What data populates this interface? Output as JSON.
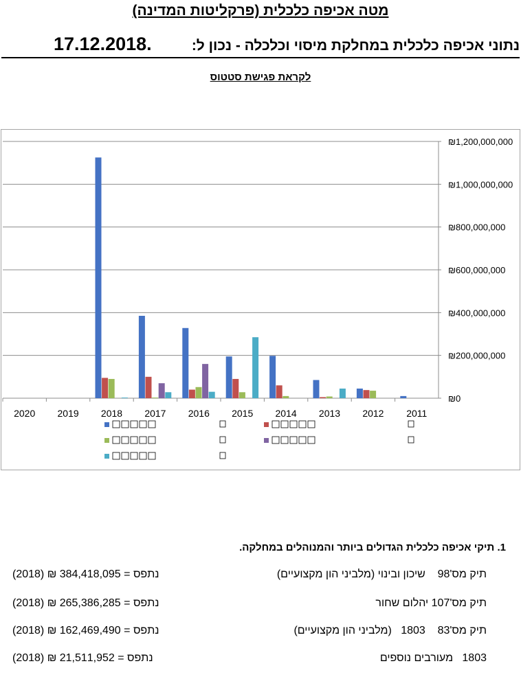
{
  "doc": {
    "title": "מטה אכיפה כלכלית (פרקליטות המדינה)",
    "subtitle_main": "נתוני אכיפה כלכלית במחלקת מיסוי וכלכלה - נכון ל:",
    "subtitle_date": "17.12.2018.",
    "status_heading": "לקראת פגישת סטטוס"
  },
  "chart_data": {
    "type": "bar",
    "categories": [
      "2011",
      "2012",
      "2013",
      "2014",
      "2015",
      "2016",
      "2017",
      "2018",
      "2019",
      "2020"
    ],
    "y_ticks": [
      "₪0",
      "₪200,000,000",
      "₪400,000,000",
      "₪600,000,000",
      "₪800,000,000",
      "₪1,000,000,000",
      "₪1,200,000,000"
    ],
    "ylim": [
      0,
      1200000000
    ],
    "grid": true,
    "legend_position": "bottom",
    "series": [
      {
        "color": "#4472c4",
        "values": [
          10000000,
          45000000,
          85000000,
          198000000,
          195000000,
          328000000,
          385000000,
          1125000000,
          0,
          0
        ]
      },
      {
        "color": "#c0504d",
        "values": [
          0,
          38000000,
          5000000,
          60000000,
          90000000,
          40000000,
          100000000,
          95000000,
          0,
          0
        ]
      },
      {
        "color": "#9bbb59",
        "values": [
          0,
          35000000,
          8000000,
          10000000,
          28000000,
          52000000,
          3000000,
          90000000,
          0,
          0
        ]
      },
      {
        "color": "#8064a2",
        "values": [
          0,
          0,
          0,
          0,
          0,
          160000000,
          70000000,
          0,
          0,
          0
        ]
      },
      {
        "color": "#4bacc6",
        "values": [
          0,
          0,
          45000000,
          0,
          285000000,
          30000000,
          28000000,
          3000000,
          0,
          0
        ]
      }
    ]
  },
  "section": {
    "heading": "1.  תיקי אכיפה כלכלית הגדולים ביותר והמנוהלים במחלקה.",
    "rows": [
      {
        "case": "תיק מס'98    שיכון ובינוי (מלביני הון מקצועיים)",
        "amount": "(2018) ₪ 384,418,095 = נתפס"
      },
      {
        "case": "תיק מס'107 יהלום שחור",
        "amount": "(2018) ₪ 265,386,285 = נתפס"
      },
      {
        "case": "תיק מס'83    1803   (מלביני הון מקצועיים)",
        "amount": "(2018) ₪ 162,469,490 = נתפס"
      },
      {
        "case": "1803   מעורבים נוספים",
        "amount": "(2018)  ₪   21,511,952 = נתפס"
      }
    ]
  }
}
